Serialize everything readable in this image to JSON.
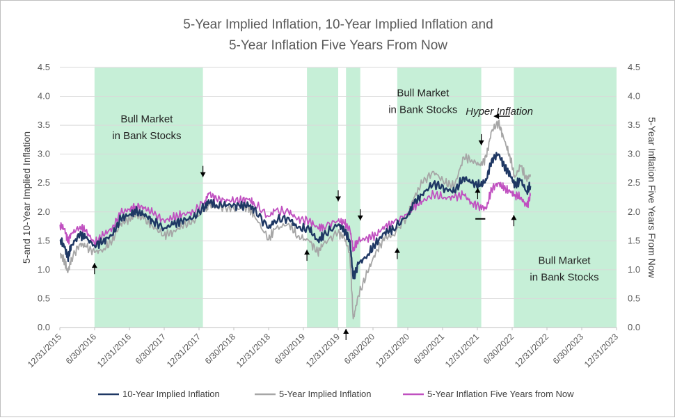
{
  "chart_data": {
    "type": "line",
    "title_line1": "5-Year Implied Inflation, 10-Year Implied Inflation and",
    "title_line2": "5-Year Inflation Five Years From Now",
    "ylabel_left": "5-and 10-Year Implied Inflation",
    "ylabel_right": "5-Year Inflation Five Years From Now",
    "ylim": [
      0,
      4.5
    ],
    "y_ticks": [
      "0.0",
      "0.5",
      "1.0",
      "1.5",
      "2.0",
      "2.5",
      "3.0",
      "3.5",
      "4.0",
      "4.5"
    ],
    "y_tick_values": [
      0,
      0.5,
      1,
      1.5,
      2,
      2.5,
      3,
      3.5,
      4,
      4.5
    ],
    "x_ticks": [
      "12/31/2015",
      "6/30/2016",
      "12/31/2016",
      "6/30/2017",
      "12/31/2017",
      "6/30/2018",
      "12/31/2018",
      "6/30/2019",
      "12/31/2019",
      "6/30/2020",
      "12/31/2020",
      "6/30/2021",
      "12/31/2021",
      "6/30/2022",
      "12/31/2022",
      "6/30/2023",
      "12/31/2023"
    ],
    "xlim": [
      "2015-12-31",
      "2023-12-31"
    ],
    "grid": "horizontal",
    "legend_position": "bottom",
    "series": [
      {
        "name": "10-Year Implied Inflation",
        "color": "#1f3864",
        "points": [
          [
            "2016-01-01",
            1.52
          ],
          [
            "2016-01-25",
            1.4
          ],
          [
            "2016-02-11",
            1.2
          ],
          [
            "2016-03-01",
            1.42
          ],
          [
            "2016-04-15",
            1.62
          ],
          [
            "2016-05-15",
            1.55
          ],
          [
            "2016-06-30",
            1.42
          ],
          [
            "2016-08-15",
            1.5
          ],
          [
            "2016-10-01",
            1.6
          ],
          [
            "2016-11-15",
            1.88
          ],
          [
            "2016-12-31",
            1.96
          ],
          [
            "2017-02-01",
            2.0
          ],
          [
            "2017-03-15",
            1.96
          ],
          [
            "2017-05-01",
            1.85
          ],
          [
            "2017-06-30",
            1.72
          ],
          [
            "2017-08-15",
            1.78
          ],
          [
            "2017-10-01",
            1.85
          ],
          [
            "2017-12-01",
            1.9
          ],
          [
            "2018-02-01",
            2.1
          ],
          [
            "2018-02-20",
            2.18
          ],
          [
            "2018-04-01",
            2.12
          ],
          [
            "2018-06-01",
            2.12
          ],
          [
            "2018-08-01",
            2.1
          ],
          [
            "2018-09-15",
            2.12
          ],
          [
            "2018-10-15",
            2.05
          ],
          [
            "2018-12-31",
            1.72
          ],
          [
            "2019-02-01",
            1.85
          ],
          [
            "2019-04-15",
            1.9
          ],
          [
            "2019-06-01",
            1.72
          ],
          [
            "2019-08-01",
            1.7
          ],
          [
            "2019-09-15",
            1.5
          ],
          [
            "2019-10-15",
            1.6
          ],
          [
            "2019-12-31",
            1.78
          ],
          [
            "2020-01-31",
            1.7
          ],
          [
            "2020-03-01",
            1.5
          ],
          [
            "2020-03-19",
            0.85
          ],
          [
            "2020-04-15",
            1.1
          ],
          [
            "2020-06-01",
            1.25
          ],
          [
            "2020-07-15",
            1.45
          ],
          [
            "2020-09-01",
            1.65
          ],
          [
            "2020-10-15",
            1.7
          ],
          [
            "2020-12-31",
            1.95
          ],
          [
            "2021-02-01",
            2.15
          ],
          [
            "2021-03-15",
            2.3
          ],
          [
            "2021-05-15",
            2.5
          ],
          [
            "2021-07-15",
            2.4
          ],
          [
            "2021-09-01",
            2.35
          ],
          [
            "2021-10-20",
            2.6
          ],
          [
            "2021-12-01",
            2.5
          ],
          [
            "2022-01-15",
            2.45
          ],
          [
            "2022-02-15",
            2.55
          ],
          [
            "2022-03-15",
            2.9
          ],
          [
            "2022-04-20",
            3.0
          ],
          [
            "2022-05-20",
            2.8
          ],
          [
            "2022-06-20",
            2.65
          ],
          [
            "2022-07-15",
            2.45
          ],
          [
            "2022-08-15",
            2.55
          ],
          [
            "2022-09-15",
            2.35
          ],
          [
            "2022-10-05",
            2.45
          ]
        ]
      },
      {
        "name": "5-Year Implied Inflation",
        "color": "#a6a6a6",
        "points": [
          [
            "2016-01-01",
            1.28
          ],
          [
            "2016-01-25",
            1.15
          ],
          [
            "2016-02-11",
            0.95
          ],
          [
            "2016-03-01",
            1.2
          ],
          [
            "2016-04-15",
            1.45
          ],
          [
            "2016-05-15",
            1.4
          ],
          [
            "2016-06-30",
            1.3
          ],
          [
            "2016-08-15",
            1.35
          ],
          [
            "2016-10-01",
            1.5
          ],
          [
            "2016-11-15",
            1.8
          ],
          [
            "2016-12-31",
            1.88
          ],
          [
            "2017-02-01",
            1.95
          ],
          [
            "2017-03-15",
            1.88
          ],
          [
            "2017-05-01",
            1.75
          ],
          [
            "2017-06-30",
            1.6
          ],
          [
            "2017-08-15",
            1.65
          ],
          [
            "2017-10-01",
            1.75
          ],
          [
            "2017-12-01",
            1.85
          ],
          [
            "2018-02-01",
            2.05
          ],
          [
            "2018-02-20",
            2.12
          ],
          [
            "2018-04-01",
            2.08
          ],
          [
            "2018-06-01",
            2.08
          ],
          [
            "2018-08-01",
            2.05
          ],
          [
            "2018-09-15",
            2.08
          ],
          [
            "2018-10-15",
            1.95
          ],
          [
            "2018-12-31",
            1.52
          ],
          [
            "2019-02-01",
            1.7
          ],
          [
            "2019-04-15",
            1.8
          ],
          [
            "2019-06-01",
            1.58
          ],
          [
            "2019-08-01",
            1.5
          ],
          [
            "2019-09-15",
            1.3
          ],
          [
            "2019-10-15",
            1.45
          ],
          [
            "2019-12-31",
            1.65
          ],
          [
            "2020-01-31",
            1.55
          ],
          [
            "2020-03-01",
            1.3
          ],
          [
            "2020-03-19",
            0.15
          ],
          [
            "2020-04-15",
            0.55
          ],
          [
            "2020-06-01",
            0.95
          ],
          [
            "2020-07-15",
            1.3
          ],
          [
            "2020-09-01",
            1.55
          ],
          [
            "2020-10-15",
            1.6
          ],
          [
            "2020-12-31",
            1.95
          ],
          [
            "2021-02-01",
            2.25
          ],
          [
            "2021-03-15",
            2.5
          ],
          [
            "2021-05-15",
            2.7
          ],
          [
            "2021-07-15",
            2.5
          ],
          [
            "2021-09-01",
            2.45
          ],
          [
            "2021-10-20",
            2.95
          ],
          [
            "2021-12-01",
            2.9
          ],
          [
            "2022-01-15",
            2.8
          ],
          [
            "2022-02-15",
            2.95
          ],
          [
            "2022-03-15",
            3.4
          ],
          [
            "2022-04-20",
            3.55
          ],
          [
            "2022-05-20",
            3.25
          ],
          [
            "2022-06-20",
            2.95
          ],
          [
            "2022-07-15",
            2.6
          ],
          [
            "2022-08-15",
            2.8
          ],
          [
            "2022-09-15",
            2.55
          ],
          [
            "2022-10-05",
            2.65
          ]
        ]
      },
      {
        "name": "5-Year Inflation Five Years from Now",
        "color": "#c050c0",
        "points": [
          [
            "2016-01-01",
            1.78
          ],
          [
            "2016-01-25",
            1.7
          ],
          [
            "2016-02-11",
            1.5
          ],
          [
            "2016-03-01",
            1.62
          ],
          [
            "2016-04-15",
            1.75
          ],
          [
            "2016-05-15",
            1.68
          ],
          [
            "2016-06-30",
            1.45
          ],
          [
            "2016-08-15",
            1.6
          ],
          [
            "2016-10-01",
            1.72
          ],
          [
            "2016-11-15",
            1.98
          ],
          [
            "2016-12-31",
            2.05
          ],
          [
            "2017-02-01",
            2.1
          ],
          [
            "2017-03-15",
            2.08
          ],
          [
            "2017-05-01",
            1.98
          ],
          [
            "2017-06-30",
            1.85
          ],
          [
            "2017-08-15",
            1.9
          ],
          [
            "2017-10-01",
            1.95
          ],
          [
            "2017-12-01",
            2.0
          ],
          [
            "2018-02-01",
            2.2
          ],
          [
            "2018-02-20",
            2.32
          ],
          [
            "2018-04-01",
            2.22
          ],
          [
            "2018-06-01",
            2.2
          ],
          [
            "2018-08-01",
            2.2
          ],
          [
            "2018-09-15",
            2.22
          ],
          [
            "2018-10-15",
            2.15
          ],
          [
            "2018-12-31",
            1.92
          ],
          [
            "2019-02-01",
            2.02
          ],
          [
            "2019-04-15",
            2.0
          ],
          [
            "2019-06-01",
            1.88
          ],
          [
            "2019-08-01",
            1.85
          ],
          [
            "2019-09-15",
            1.72
          ],
          [
            "2019-10-15",
            1.75
          ],
          [
            "2019-12-31",
            1.85
          ],
          [
            "2020-01-31",
            1.8
          ],
          [
            "2020-03-01",
            1.7
          ],
          [
            "2020-03-19",
            1.35
          ],
          [
            "2020-04-15",
            1.5
          ],
          [
            "2020-06-01",
            1.55
          ],
          [
            "2020-07-15",
            1.6
          ],
          [
            "2020-09-01",
            1.75
          ],
          [
            "2020-10-15",
            1.8
          ],
          [
            "2020-12-31",
            1.98
          ],
          [
            "2021-02-01",
            2.1
          ],
          [
            "2021-03-15",
            2.18
          ],
          [
            "2021-05-15",
            2.3
          ],
          [
            "2021-07-15",
            2.25
          ],
          [
            "2021-09-01",
            2.25
          ],
          [
            "2021-10-20",
            2.3
          ],
          [
            "2021-12-01",
            2.15
          ],
          [
            "2022-01-15",
            2.1
          ],
          [
            "2022-02-15",
            2.05
          ],
          [
            "2022-03-15",
            2.4
          ],
          [
            "2022-04-20",
            2.5
          ],
          [
            "2022-05-20",
            2.4
          ],
          [
            "2022-06-20",
            2.35
          ],
          [
            "2022-07-15",
            2.3
          ],
          [
            "2022-08-15",
            2.25
          ],
          [
            "2022-09-15",
            2.1
          ],
          [
            "2022-10-05",
            2.28
          ]
        ]
      }
    ],
    "shaded_regions": [
      {
        "start": "2016-06-30",
        "end": "2018-01-20",
        "color": "#c6efd7"
      },
      {
        "start": "2019-07-20",
        "end": "2019-12-31",
        "color": "#c6efd7"
      },
      {
        "start": "2020-02-10",
        "end": "2020-04-25",
        "color": "#c6efd7"
      },
      {
        "start": "2020-11-05",
        "end": "2022-01-20",
        "color": "#c6efd7"
      },
      {
        "start": "2022-07-10",
        "end": "2023-12-31",
        "color": "#c6efd7"
      }
    ],
    "annotations": [
      {
        "lines": [
          "Bull Market",
          "in Bank Stocks"
        ],
        "date": "2017-03-31",
        "y": 3.55,
        "italic": false
      },
      {
        "lines": [
          "Bull Market",
          "in Bank Stocks"
        ],
        "date": "2021-03-20",
        "y": 4.0,
        "italic": false
      },
      {
        "lines": [
          "Bull Market",
          "in Bank Stocks"
        ],
        "date": "2023-04-01",
        "y": 1.1,
        "italic": false
      },
      {
        "lines": [
          "Hyper Inflation"
        ],
        "date": "2022-04-25",
        "y": 3.68,
        "italic": true
      }
    ],
    "markers": [
      {
        "date": "2016-06-30",
        "y": 1.02,
        "dir": "up"
      },
      {
        "date": "2018-01-20",
        "y": 2.7,
        "dir": "down"
      },
      {
        "date": "2019-07-20",
        "y": 1.25,
        "dir": "up"
      },
      {
        "date": "2019-12-31",
        "y": 2.28,
        "dir": "down"
      },
      {
        "date": "2020-02-10",
        "y": -0.12,
        "dir": "up"
      },
      {
        "date": "2020-04-25",
        "y": 1.95,
        "dir": "down"
      },
      {
        "date": "2020-11-05",
        "y": 1.28,
        "dir": "up"
      },
      {
        "date": "2022-01-20",
        "y": 3.25,
        "dir": "down"
      },
      {
        "date": "2022-07-10",
        "y": 1.85,
        "dir": "up"
      },
      {
        "date": "2022-01-01",
        "y": 2.32,
        "dir": "up"
      }
    ],
    "hyper_inflation_arrow": {
      "from_date": "2022-06-20",
      "to_date": "2022-03-25",
      "y": 3.68
    },
    "support_line": {
      "start": "2021-12-20",
      "end": "2022-02-10",
      "y": 1.88
    }
  }
}
